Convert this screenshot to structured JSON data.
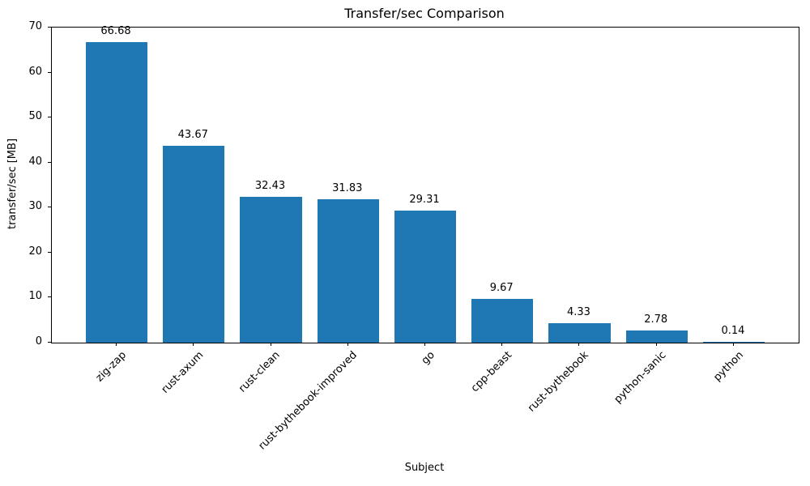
{
  "chart_data": {
    "type": "bar",
    "title": "Transfer/sec Comparison",
    "xlabel": "Subject",
    "ylabel": "transfer/sec [MB]",
    "categories": [
      "zig-zap",
      "rust-axum",
      "rust-clean",
      "rust-bythebook-improved",
      "go",
      "cpp-beast",
      "rust-bythebook",
      "python-sanic",
      "python"
    ],
    "values": [
      66.68,
      43.67,
      32.43,
      31.83,
      29.31,
      9.67,
      4.33,
      2.78,
      0.14
    ],
    "value_labels": [
      "66.68",
      "43.67",
      "32.43",
      "31.83",
      "29.31",
      "9.67",
      "4.33",
      "2.78",
      "0.14"
    ],
    "ylim": [
      0,
      70
    ],
    "yticks": [
      0,
      10,
      20,
      30,
      40,
      50,
      60,
      70
    ],
    "bar_color": "#1f77b4",
    "bar_width_fraction": 0.8,
    "grid": "off",
    "legend": "none"
  }
}
